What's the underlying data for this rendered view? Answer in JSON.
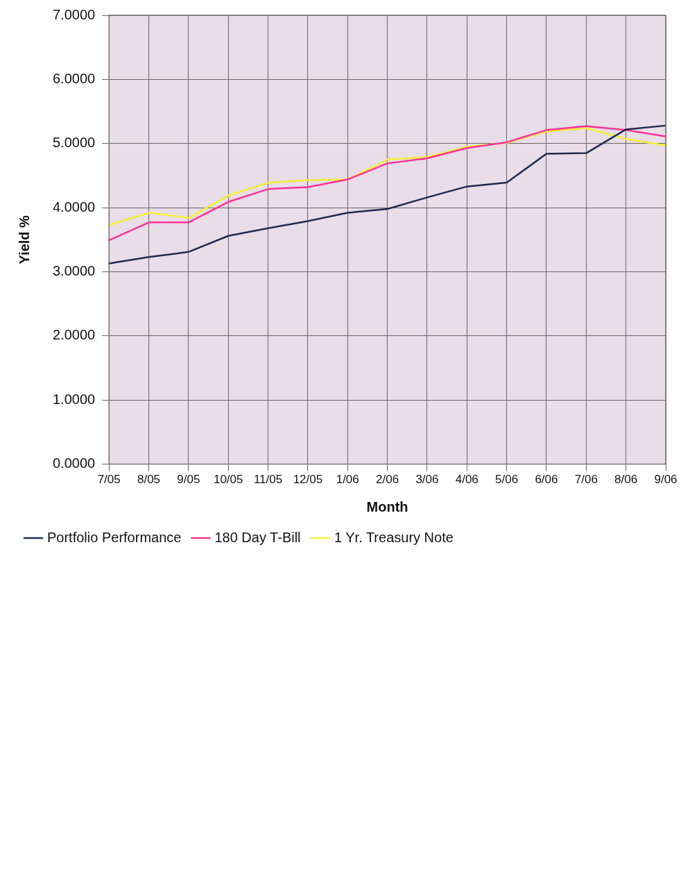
{
  "chart_data": {
    "type": "line",
    "xlabel": "Month",
    "ylabel": "Yield %",
    "categories": [
      "7/05",
      "8/05",
      "9/05",
      "10/05",
      "11/05",
      "12/05",
      "1/06",
      "2/06",
      "3/06",
      "4/06",
      "5/06",
      "6/06",
      "7/06",
      "8/06",
      "9/06"
    ],
    "series": [
      {
        "name": "Portfolio Performance",
        "color": "#1f2a4f",
        "values": [
          3.13,
          3.23,
          3.31,
          3.56,
          3.68,
          3.79,
          3.92,
          3.98,
          4.16,
          4.33,
          4.39,
          4.84,
          4.85,
          5.22,
          5.28
        ]
      },
      {
        "name": "180 Day T-Bill",
        "color": "#ff3399",
        "values": [
          3.49,
          3.77,
          3.77,
          4.09,
          4.29,
          4.32,
          4.44,
          4.69,
          4.77,
          4.93,
          5.02,
          5.21,
          5.27,
          5.21,
          5.11
        ]
      },
      {
        "name": "1 Yr. Treasury Note",
        "color": "#f5f032",
        "values": [
          3.73,
          3.92,
          3.84,
          4.19,
          4.39,
          4.43,
          4.44,
          4.75,
          4.79,
          4.95,
          5.01,
          5.19,
          5.24,
          5.07,
          4.97
        ]
      }
    ],
    "ylim": [
      0,
      7
    ],
    "yticks": [
      {
        "value": 0,
        "label": "0.0000"
      },
      {
        "value": 1,
        "label": "1.0000"
      },
      {
        "value": 2,
        "label": "2.0000"
      },
      {
        "value": 3,
        "label": "3.0000"
      },
      {
        "value": 4,
        "label": "4.0000"
      },
      {
        "value": 5,
        "label": "5.0000"
      },
      {
        "value": 6,
        "label": "6.0000"
      },
      {
        "value": 7,
        "label": "7.0000"
      }
    ],
    "grid": true,
    "legend": "bottom left",
    "marker": "none",
    "line_style": "solid"
  }
}
